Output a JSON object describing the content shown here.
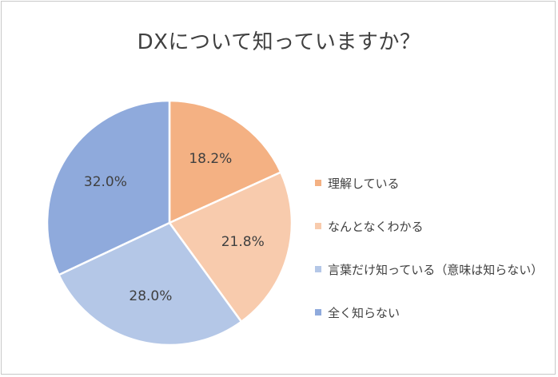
{
  "chart_data": {
    "type": "pie",
    "title": "DXについて知っていますか？",
    "categories": [
      "理解している",
      "なんとなくわかる",
      "言葉だけ知っている（意味は知らない）",
      "全く知らない"
    ],
    "values": [
      18.2,
      21.8,
      28.0,
      32.0
    ],
    "data_labels": [
      "18.2%",
      "21.8%",
      "28.0%",
      "32.0%"
    ],
    "colors": [
      "#f4b183",
      "#f8cbad",
      "#b4c7e7",
      "#8faadc"
    ],
    "legend_position": "right",
    "start_angle": "12 o'clock",
    "direction": "clockwise"
  }
}
